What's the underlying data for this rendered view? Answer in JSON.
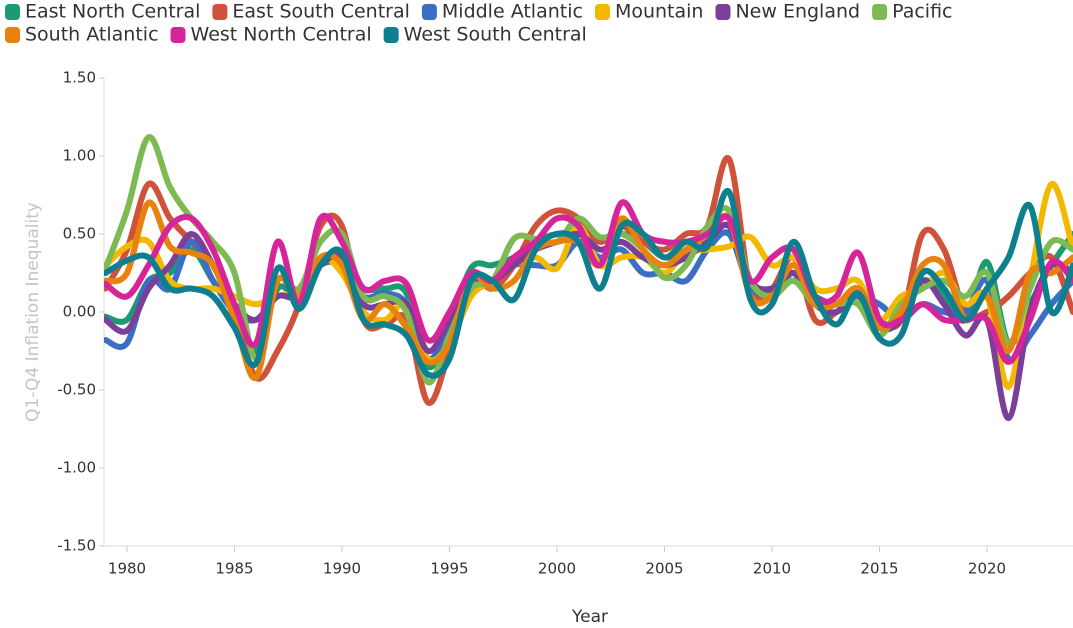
{
  "chart_data": {
    "type": "line",
    "x_label": "Year",
    "y_label": "Q1-Q4 Inflation Inequality",
    "x": [
      1979,
      1980,
      1981,
      1982,
      1983,
      1984,
      1985,
      1986,
      1987,
      1988,
      1989,
      1990,
      1991,
      1992,
      1993,
      1994,
      1995,
      1996,
      1997,
      1998,
      1999,
      2000,
      2001,
      2002,
      2003,
      2004,
      2005,
      2006,
      2007,
      2008,
      2009,
      2010,
      2011,
      2012,
      2013,
      2014,
      2015,
      2016,
      2017,
      2018,
      2019,
      2020,
      2021,
      2022,
      2023,
      2024
    ],
    "xlim": [
      1979,
      2024
    ],
    "xticks": [
      1980,
      1985,
      1990,
      1995,
      2000,
      2005,
      2010,
      2015,
      2020
    ],
    "ylim": [
      -1.5,
      1.5
    ],
    "yticks": [
      {
        "value": -1.5,
        "label": "-1.50"
      },
      {
        "value": -1,
        "label": "-1.00"
      },
      {
        "value": -0.5,
        "label": "-0.50"
      },
      {
        "value": 0,
        "label": "0.00"
      },
      {
        "value": 0.5,
        "label": "0.50"
      },
      {
        "value": 1,
        "label": "1.00"
      },
      {
        "value": 1.5,
        "label": "1.50"
      }
    ],
    "grid": false,
    "legend": "top",
    "series": [
      {
        "name": "East North Central",
        "color": "#1a9b73",
        "values": [
          -0.03,
          -0.05,
          0.2,
          0.25,
          0.4,
          0.2,
          0.0,
          -0.25,
          0.15,
          0.1,
          0.3,
          0.3,
          0.15,
          0.15,
          0.12,
          -0.35,
          -0.1,
          0.28,
          0.3,
          0.35,
          0.45,
          0.5,
          0.5,
          0.45,
          0.5,
          0.45,
          0.35,
          0.4,
          0.5,
          0.6,
          0.15,
          0.1,
          0.25,
          0.05,
          0.0,
          0.1,
          -0.1,
          -0.05,
          0.2,
          0.1,
          -0.05,
          0.32,
          -0.2,
          0.05,
          0.3,
          0.5
        ]
      },
      {
        "name": "East South Central",
        "color": "#d1523b",
        "values": [
          0.15,
          0.4,
          0.82,
          0.6,
          0.45,
          0.3,
          0.0,
          -0.42,
          -0.25,
          0.05,
          0.55,
          0.55,
          -0.05,
          -0.08,
          -0.05,
          -0.58,
          -0.25,
          0.2,
          0.15,
          0.3,
          0.55,
          0.65,
          0.6,
          0.45,
          0.55,
          0.45,
          0.4,
          0.5,
          0.55,
          0.98,
          0.15,
          0.15,
          0.35,
          -0.05,
          0.0,
          0.1,
          -0.05,
          -0.05,
          0.5,
          0.4,
          0.0,
          0.0,
          0.1,
          0.25,
          0.35,
          0.0
        ]
      },
      {
        "name": "Middle Atlantic",
        "color": "#3b6fc4",
        "values": [
          -0.18,
          -0.2,
          0.2,
          0.15,
          0.45,
          0.2,
          0.0,
          -0.05,
          0.1,
          0.1,
          0.3,
          0.3,
          0.1,
          0.12,
          0.05,
          -0.3,
          -0.1,
          0.15,
          0.2,
          0.3,
          0.3,
          0.3,
          0.45,
          0.35,
          0.4,
          0.25,
          0.25,
          0.2,
          0.4,
          0.5,
          0.15,
          0.15,
          0.2,
          0.1,
          0.05,
          0.1,
          0.05,
          -0.05,
          0.05,
          0.0,
          0.0,
          0.2,
          -0.3,
          -0.15,
          0.05,
          0.2
        ]
      },
      {
        "name": "Mountain",
        "color": "#f5b800",
        "values": [
          0.3,
          0.42,
          0.45,
          0.2,
          0.15,
          0.15,
          0.1,
          0.05,
          0.1,
          0.15,
          0.35,
          0.25,
          0.0,
          -0.05,
          0.05,
          -0.3,
          -0.2,
          0.1,
          0.2,
          0.3,
          0.35,
          0.28,
          0.55,
          0.3,
          0.35,
          0.35,
          0.25,
          0.38,
          0.4,
          0.42,
          0.48,
          0.3,
          0.35,
          0.15,
          0.15,
          0.2,
          -0.05,
          0.1,
          0.15,
          0.25,
          0.05,
          0.1,
          -0.48,
          0.2,
          0.82,
          0.4
        ]
      },
      {
        "name": "New England",
        "color": "#7b3f99",
        "values": [
          -0.05,
          -0.12,
          0.15,
          0.3,
          0.5,
          0.3,
          0.05,
          -0.05,
          0.1,
          0.1,
          0.3,
          0.35,
          0.05,
          0.05,
          0.05,
          -0.25,
          -0.05,
          0.2,
          0.2,
          0.3,
          0.4,
          0.45,
          0.5,
          0.4,
          0.45,
          0.35,
          0.3,
          0.35,
          0.45,
          0.55,
          0.2,
          0.15,
          0.25,
          0.05,
          0.0,
          0.15,
          -0.1,
          -0.05,
          0.2,
          0.05,
          -0.15,
          -0.05,
          -0.68,
          0.0,
          0.3,
          0.25
        ]
      },
      {
        "name": "Pacific",
        "color": "#7dba51",
        "values": [
          0.28,
          0.65,
          1.12,
          0.8,
          0.6,
          0.45,
          0.25,
          -0.3,
          0.2,
          0.15,
          0.45,
          0.5,
          0.1,
          0.1,
          0.0,
          -0.45,
          -0.15,
          0.15,
          0.2,
          0.47,
          0.47,
          0.45,
          0.6,
          0.48,
          0.5,
          0.4,
          0.22,
          0.3,
          0.55,
          0.65,
          0.2,
          0.1,
          0.2,
          0.05,
          0.05,
          0.05,
          -0.15,
          0.05,
          0.15,
          0.2,
          0.1,
          0.25,
          -0.2,
          0.15,
          0.45,
          0.4
        ]
      },
      {
        "name": "South Atlantic",
        "color": "#e8820c",
        "values": [
          0.2,
          0.25,
          0.7,
          0.42,
          0.38,
          0.3,
          -0.05,
          -0.42,
          0.2,
          0.1,
          0.35,
          0.3,
          -0.05,
          0.05,
          -0.1,
          -0.32,
          -0.2,
          0.22,
          0.15,
          0.2,
          0.4,
          0.45,
          0.45,
          0.3,
          0.6,
          0.4,
          0.3,
          0.4,
          0.5,
          0.6,
          0.1,
          0.1,
          0.3,
          0.05,
          0.05,
          0.15,
          -0.1,
          0.0,
          0.3,
          0.3,
          -0.05,
          0.1,
          -0.25,
          0.25,
          0.25,
          0.35
        ]
      },
      {
        "name": "West North Central",
        "color": "#d6249a",
        "values": [
          0.18,
          0.1,
          0.3,
          0.55,
          0.6,
          0.4,
          0.05,
          -0.2,
          0.45,
          0.05,
          0.6,
          0.45,
          0.15,
          0.2,
          0.18,
          -0.18,
          0.0,
          0.25,
          0.2,
          0.35,
          0.45,
          0.6,
          0.55,
          0.3,
          0.7,
          0.5,
          0.45,
          0.45,
          0.5,
          0.6,
          0.2,
          0.35,
          0.4,
          0.1,
          0.1,
          0.38,
          -0.05,
          -0.05,
          0.05,
          -0.05,
          -0.05,
          -0.05,
          -0.32,
          -0.05,
          0.32,
          0.2
        ]
      },
      {
        "name": "West South Central",
        "color": "#0d7f8f",
        "values": [
          0.25,
          0.33,
          0.35,
          0.15,
          0.15,
          0.1,
          -0.1,
          -0.33,
          0.28,
          0.02,
          0.3,
          0.38,
          -0.05,
          -0.08,
          -0.15,
          -0.4,
          -0.3,
          0.2,
          0.2,
          0.08,
          0.4,
          0.5,
          0.45,
          0.15,
          0.55,
          0.5,
          0.35,
          0.45,
          0.42,
          0.77,
          0.08,
          0.05,
          0.45,
          0.1,
          -0.08,
          0.12,
          -0.17,
          -0.15,
          0.25,
          0.15,
          -0.05,
          0.15,
          0.35,
          0.68,
          0.0,
          0.3
        ]
      }
    ]
  }
}
